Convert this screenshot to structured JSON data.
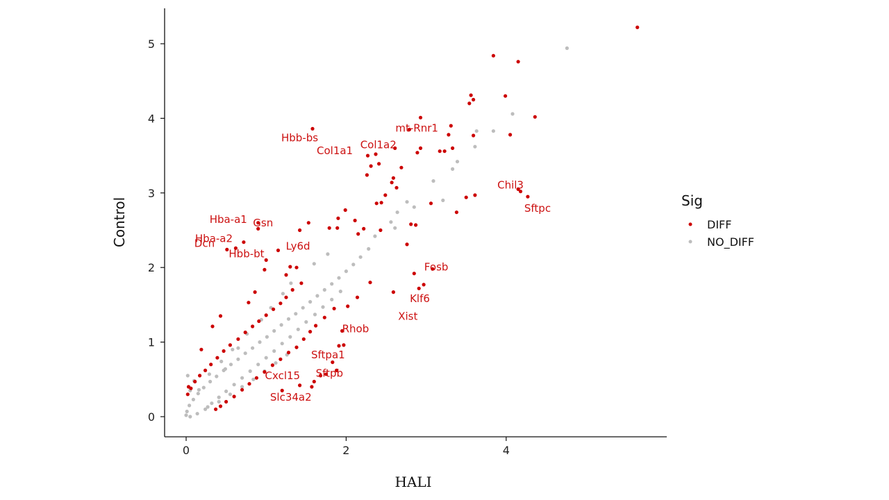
{
  "chart_data": {
    "type": "scatter",
    "xlabel": "HALI",
    "ylabel": "Control",
    "xlim": [
      -0.28,
      6.0
    ],
    "ylim": [
      -0.28,
      5.5
    ],
    "x_ticks": [
      0,
      2,
      4
    ],
    "y_ticks": [
      0,
      1,
      2,
      3,
      4,
      5
    ],
    "grid": false,
    "legend": {
      "title": "Sig",
      "position": "right",
      "entries": [
        {
          "label": "DIFF",
          "color": "#cc0000"
        },
        {
          "label": "NO_DIFF",
          "color": "#bdbdbd"
        }
      ]
    },
    "colors": {
      "DIFF": "#cc0000",
      "NO_DIFF": "#bdbdbd"
    },
    "series": [
      {
        "name": "DIFF",
        "points": [
          [
            5.64,
            5.22
          ],
          [
            3.84,
            4.84
          ],
          [
            4.15,
            4.76
          ],
          [
            3.99,
            4.3
          ],
          [
            3.56,
            4.31
          ],
          [
            3.59,
            4.25
          ],
          [
            3.54,
            4.2
          ],
          [
            4.36,
            4.02
          ],
          [
            4.05,
            3.78
          ],
          [
            3.59,
            3.77
          ],
          [
            3.31,
            3.9
          ],
          [
            3.28,
            3.78
          ],
          [
            2.93,
            4.01
          ],
          [
            2.79,
            3.85
          ],
          [
            2.61,
            3.6
          ],
          [
            2.89,
            3.54
          ],
          [
            2.93,
            3.6
          ],
          [
            3.17,
            3.56
          ],
          [
            3.23,
            3.56
          ],
          [
            3.33,
            3.6
          ],
          [
            2.37,
            3.52
          ],
          [
            2.27,
            3.5
          ],
          [
            2.41,
            3.39
          ],
          [
            2.31,
            3.36
          ],
          [
            2.69,
            3.34
          ],
          [
            2.26,
            3.24
          ],
          [
            2.59,
            3.2
          ],
          [
            2.57,
            3.14
          ],
          [
            2.63,
            3.07
          ],
          [
            2.49,
            2.97
          ],
          [
            4.15,
            3.05
          ],
          [
            4.18,
            3.02
          ],
          [
            3.61,
            2.97
          ],
          [
            3.5,
            2.94
          ],
          [
            4.27,
            2.95
          ],
          [
            3.38,
            2.74
          ],
          [
            3.06,
            2.86
          ],
          [
            2.38,
            2.86
          ],
          [
            2.44,
            2.87
          ],
          [
            1.99,
            2.77
          ],
          [
            2.11,
            2.63
          ],
          [
            1.9,
            2.66
          ],
          [
            1.89,
            2.53
          ],
          [
            1.79,
            2.53
          ],
          [
            2.81,
            2.58
          ],
          [
            2.87,
            2.57
          ],
          [
            2.22,
            2.52
          ],
          [
            2.43,
            2.5
          ],
          [
            2.15,
            2.45
          ],
          [
            1.58,
            3.86
          ],
          [
            1.53,
            2.6
          ],
          [
            1.42,
            2.5
          ],
          [
            0.9,
            2.6
          ],
          [
            0.72,
            2.34
          ],
          [
            0.62,
            2.26
          ],
          [
            0.51,
            2.24
          ],
          [
            0.9,
            2.52
          ],
          [
            2.76,
            2.31
          ],
          [
            3.08,
            1.98
          ],
          [
            2.91,
            1.72
          ],
          [
            2.97,
            1.77
          ],
          [
            2.85,
            1.92
          ],
          [
            2.59,
            1.67
          ],
          [
            1.95,
            1.15
          ],
          [
            1.97,
            0.96
          ],
          [
            1.83,
            0.73
          ],
          [
            1.91,
            0.95
          ],
          [
            1.88,
            0.62
          ],
          [
            1.75,
            0.57
          ],
          [
            1.68,
            0.55
          ],
          [
            1.6,
            0.47
          ],
          [
            1.57,
            0.4
          ],
          [
            1.42,
            0.42
          ],
          [
            1.2,
            0.35
          ],
          [
            2.3,
            1.8
          ],
          [
            2.14,
            1.6
          ],
          [
            2.02,
            1.48
          ],
          [
            1.85,
            1.45
          ],
          [
            1.73,
            1.33
          ],
          [
            1.62,
            1.22
          ],
          [
            1.55,
            1.14
          ],
          [
            1.47,
            1.04
          ],
          [
            1.38,
            0.93
          ],
          [
            1.28,
            0.86
          ],
          [
            1.18,
            0.77
          ],
          [
            1.08,
            0.69
          ],
          [
            0.98,
            0.6
          ],
          [
            0.88,
            0.52
          ],
          [
            0.79,
            0.44
          ],
          [
            0.7,
            0.36
          ],
          [
            0.6,
            0.27
          ],
          [
            0.5,
            0.2
          ],
          [
            0.43,
            0.14
          ],
          [
            0.37,
            0.1
          ],
          [
            1.44,
            1.79
          ],
          [
            1.33,
            1.7
          ],
          [
            1.25,
            1.6
          ],
          [
            1.18,
            1.52
          ],
          [
            1.09,
            1.44
          ],
          [
            1.0,
            1.36
          ],
          [
            0.91,
            1.28
          ],
          [
            0.83,
            1.21
          ],
          [
            0.74,
            1.13
          ],
          [
            0.65,
            1.04
          ],
          [
            0.55,
            0.96
          ],
          [
            0.47,
            0.88
          ],
          [
            0.39,
            0.79
          ],
          [
            0.31,
            0.7
          ],
          [
            0.24,
            0.62
          ],
          [
            0.17,
            0.55
          ],
          [
            0.11,
            0.47
          ],
          [
            0.06,
            0.38
          ],
          [
            0.02,
            0.3
          ],
          [
            1.15,
            2.23
          ],
          [
            1.0,
            2.1
          ],
          [
            0.98,
            1.97
          ],
          [
            0.86,
            1.67
          ],
          [
            0.78,
            1.53
          ],
          [
            0.43,
            1.35
          ],
          [
            0.33,
            1.21
          ],
          [
            0.19,
            0.9
          ],
          [
            0.03,
            0.4
          ],
          [
            1.3,
            2.01
          ],
          [
            1.38,
            2.0
          ],
          [
            1.25,
            1.9
          ]
        ]
      },
      {
        "name": "NO_DIFF",
        "points": [
          [
            4.76,
            4.94
          ],
          [
            4.08,
            4.06
          ],
          [
            3.84,
            3.83
          ],
          [
            3.63,
            3.83
          ],
          [
            3.61,
            3.62
          ],
          [
            3.39,
            3.42
          ],
          [
            3.33,
            3.32
          ],
          [
            3.09,
            3.16
          ],
          [
            3.21,
            2.9
          ],
          [
            2.76,
            2.88
          ],
          [
            2.85,
            2.81
          ],
          [
            2.64,
            2.74
          ],
          [
            2.56,
            2.61
          ],
          [
            2.61,
            2.53
          ],
          [
            2.36,
            2.42
          ],
          [
            2.28,
            2.25
          ],
          [
            2.18,
            2.14
          ],
          [
            2.09,
            2.04
          ],
          [
            2.0,
            1.95
          ],
          [
            1.91,
            1.86
          ],
          [
            1.82,
            1.78
          ],
          [
            1.73,
            1.7
          ],
          [
            1.64,
            1.62
          ],
          [
            1.55,
            1.54
          ],
          [
            1.46,
            1.46
          ],
          [
            1.37,
            1.38
          ],
          [
            1.28,
            1.31
          ],
          [
            1.19,
            1.23
          ],
          [
            1.1,
            1.15
          ],
          [
            1.01,
            1.07
          ],
          [
            0.92,
            1.0
          ],
          [
            0.83,
            0.92
          ],
          [
            0.74,
            0.85
          ],
          [
            0.65,
            0.77
          ],
          [
            0.56,
            0.7
          ],
          [
            0.47,
            0.62
          ],
          [
            0.38,
            0.54
          ],
          [
            0.3,
            0.47
          ],
          [
            0.22,
            0.39
          ],
          [
            0.15,
            0.31
          ],
          [
            0.09,
            0.23
          ],
          [
            0.04,
            0.15
          ],
          [
            0.01,
            0.07
          ],
          [
            0.0,
            0.02
          ],
          [
            0.05,
            0.0
          ],
          [
            0.14,
            0.04
          ],
          [
            0.24,
            0.1
          ],
          [
            0.32,
            0.18
          ],
          [
            0.41,
            0.26
          ],
          [
            0.5,
            0.34
          ],
          [
            0.6,
            0.43
          ],
          [
            0.7,
            0.52
          ],
          [
            0.8,
            0.61
          ],
          [
            0.9,
            0.7
          ],
          [
            1.0,
            0.79
          ],
          [
            1.1,
            0.88
          ],
          [
            1.2,
            0.98
          ],
          [
            1.3,
            1.07
          ],
          [
            1.4,
            1.17
          ],
          [
            1.5,
            1.27
          ],
          [
            1.61,
            1.37
          ],
          [
            1.71,
            1.47
          ],
          [
            1.82,
            1.57
          ],
          [
            1.93,
            1.68
          ],
          [
            0.05,
            0.35
          ],
          [
            0.1,
            0.48
          ],
          [
            0.02,
            0.55
          ],
          [
            0.49,
            0.64
          ],
          [
            0.65,
            0.92
          ],
          [
            1.6,
            2.05
          ],
          [
            1.77,
            2.18
          ],
          [
            1.31,
            1.79
          ],
          [
            1.21,
            1.65
          ],
          [
            1.06,
            1.46
          ],
          [
            0.94,
            1.3
          ],
          [
            0.76,
            1.11
          ],
          [
            0.58,
            0.9
          ],
          [
            0.44,
            0.74
          ],
          [
            0.29,
            0.57
          ],
          [
            0.16,
            0.36
          ],
          [
            0.27,
            0.13
          ],
          [
            0.41,
            0.2
          ],
          [
            0.55,
            0.3
          ],
          [
            0.7,
            0.4
          ],
          [
            0.84,
            0.5
          ],
          [
            0.98,
            0.61
          ],
          [
            1.12,
            0.72
          ],
          [
            1.26,
            0.83
          ]
        ]
      }
    ],
    "annotations": [
      {
        "text": "Hbb-bs",
        "x": 1.58,
        "y": 3.86
      },
      {
        "text": "mt-Rnr1",
        "x": 2.79,
        "y": 3.85
      },
      {
        "text": "Col1a2",
        "x": 2.61,
        "y": 3.6
      },
      {
        "text": "Col1a1",
        "x": 2.37,
        "y": 3.52
      },
      {
        "text": "Chil3",
        "x": 4.15,
        "y": 3.05
      },
      {
        "text": "Sftpc",
        "x": 4.27,
        "y": 2.95
      },
      {
        "text": "Gsn",
        "x": 1.53,
        "y": 2.6
      },
      {
        "text": "Hba-a1",
        "x": 0.9,
        "y": 2.6
      },
      {
        "text": "Hba-a2",
        "x": 0.72,
        "y": 2.34
      },
      {
        "text": "Ly6d",
        "x": 1.42,
        "y": 2.5
      },
      {
        "text": "Dcn",
        "x": 0.51,
        "y": 2.24
      },
      {
        "text": "Hbb-bt",
        "x": 0.62,
        "y": 2.26
      },
      {
        "text": "Fosb",
        "x": 3.08,
        "y": 1.98
      },
      {
        "text": "Klf6",
        "x": 2.97,
        "y": 1.77
      },
      {
        "text": "Xist",
        "x": 2.91,
        "y": 1.72
      },
      {
        "text": "Rhob",
        "x": 1.95,
        "y": 1.15
      },
      {
        "text": "Sftpa1",
        "x": 1.91,
        "y": 0.95
      },
      {
        "text": "Cxcl15",
        "x": 1.68,
        "y": 0.55
      },
      {
        "text": "Sftpb",
        "x": 1.88,
        "y": 0.62
      },
      {
        "text": "Slc34a2",
        "x": 1.57,
        "y": 0.4
      }
    ]
  }
}
